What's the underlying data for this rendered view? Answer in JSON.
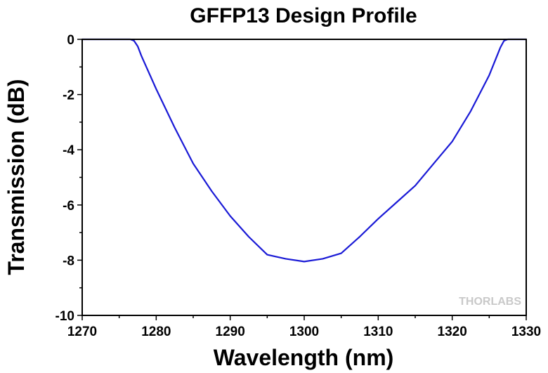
{
  "chart_data": {
    "type": "line",
    "title": "GFFP13 Design Profile",
    "xlabel": "Wavelength (nm)",
    "ylabel": "Transmission (dB)",
    "xlim": [
      1270,
      1330
    ],
    "ylim": [
      -10,
      0
    ],
    "xticks": [
      "1270",
      "1280",
      "1290",
      "1300",
      "1310",
      "1320",
      "1330"
    ],
    "yticks": [
      "0",
      "-2",
      "-4",
      "-6",
      "-8",
      "-10"
    ],
    "grid": false,
    "line_color": "#1a1ad6",
    "series": [
      {
        "x": [
          1270,
          1276.5,
          1277,
          1277.5,
          1278,
          1280,
          1282.5,
          1285,
          1287.5,
          1290,
          1292.5,
          1295,
          1297.5,
          1300,
          1302.5,
          1305,
          1307.5,
          1310,
          1312.5,
          1315,
          1317.5,
          1320,
          1322.5,
          1325,
          1326.5,
          1327,
          1327.5,
          1330
        ],
        "y": [
          0,
          0,
          -0.05,
          -0.25,
          -0.6,
          -1.8,
          -3.2,
          -4.5,
          -5.5,
          -6.4,
          -7.15,
          -7.8,
          -7.95,
          -8.05,
          -7.95,
          -7.75,
          -7.15,
          -6.5,
          -5.9,
          -5.3,
          -4.5,
          -3.7,
          -2.6,
          -1.3,
          -0.3,
          -0.05,
          0,
          0
        ]
      }
    ],
    "watermark": "THORLABS"
  }
}
